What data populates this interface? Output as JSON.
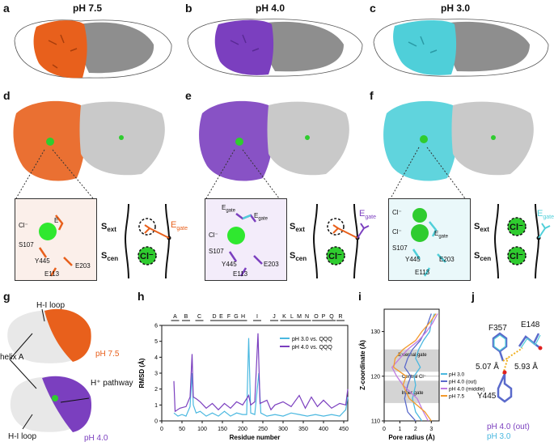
{
  "panels": {
    "a": "a",
    "b": "b",
    "c": "c",
    "d": "d",
    "e": "e",
    "f": "f",
    "g": "g",
    "h": "h",
    "i": "i",
    "j": "j"
  },
  "titles": {
    "a": "pH 7.5",
    "b": "pH 4.0",
    "c": "pH 3.0"
  },
  "colors": {
    "ph75": "#e8601c",
    "ph40": "#7b3fbf",
    "ph30": "#4fcfd9",
    "gray": "#9a9a9a",
    "green": "#2fcc2f"
  },
  "zoom_d": {
    "cl": "Cl⁻",
    "e": "E",
    "s107": "S107",
    "y445": "Y445",
    "e203": "E203",
    "e113": "E113"
  },
  "zoom_e": {
    "egate1": "E",
    "egate1_sub": "gate",
    "egate2": "E",
    "egate2_sub": "gate",
    "cl": "Cl⁻",
    "s107": "S107",
    "y445": "Y445",
    "e203": "E203",
    "e113": "E113"
  },
  "zoom_f": {
    "cl1": "Cl⁻",
    "cl2": "Cl⁻",
    "egate": "E",
    "egate_sub": "gate",
    "s107": "S107",
    "y445": "Y445",
    "e203": "E203",
    "e113": "E113"
  },
  "schematics": {
    "s": "S",
    "ext": "ext",
    "cen": "cen",
    "cl": "Cl⁻",
    "egate": "E",
    "egate_sub": "gate"
  },
  "panel_g": {
    "hi_loop_top": "H-I loop",
    "helix_a": "helix A",
    "hplus": "H⁺ pathway",
    "hi_loop_bottom": "H-I loop",
    "ph75": "pH 7.5",
    "ph40": "pH 4.0"
  },
  "chart_h": {
    "type": "line",
    "xlabel": "Residue number",
    "ylabel": "RMSD (Å)",
    "xlim": [
      0,
      460
    ],
    "ylim": [
      0,
      6
    ],
    "xticks": [
      0,
      50,
      100,
      150,
      200,
      250,
      300,
      350,
      400,
      450
    ],
    "yticks": [
      0,
      1,
      2,
      3,
      4,
      5,
      6
    ],
    "helices": [
      {
        "label": "A",
        "x": 33
      },
      {
        "label": "B",
        "x": 60
      },
      {
        "label": "C",
        "x": 93
      },
      {
        "label": "D",
        "x": 130
      },
      {
        "label": "E",
        "x": 147
      },
      {
        "label": "F",
        "x": 166
      },
      {
        "label": "G",
        "x": 184
      },
      {
        "label": "H",
        "x": 201
      },
      {
        "label": "I",
        "x": 236
      },
      {
        "label": "J",
        "x": 278
      },
      {
        "label": "K",
        "x": 303
      },
      {
        "label": "L",
        "x": 322
      },
      {
        "label": "M",
        "x": 340
      },
      {
        "label": "N",
        "x": 359
      },
      {
        "label": "O",
        "x": 382
      },
      {
        "label": "P",
        "x": 400
      },
      {
        "label": "Q",
        "x": 420
      },
      {
        "label": "R",
        "x": 442
      }
    ],
    "series": [
      {
        "name": "pH 3.0 vs. QQQ",
        "color": "#4ab8e0",
        "points": [
          [
            30,
            0.5
          ],
          [
            40,
            0.3
          ],
          [
            50,
            0.4
          ],
          [
            60,
            0.3
          ],
          [
            70,
            0.9
          ],
          [
            75,
            3.0
          ],
          [
            78,
            1.0
          ],
          [
            85,
            0.5
          ],
          [
            95,
            0.6
          ],
          [
            110,
            0.3
          ],
          [
            125,
            0.5
          ],
          [
            140,
            0.3
          ],
          [
            155,
            0.6
          ],
          [
            170,
            0.3
          ],
          [
            185,
            0.5
          ],
          [
            200,
            0.4
          ],
          [
            210,
            0.4
          ],
          [
            215,
            5.2
          ],
          [
            220,
            0.5
          ],
          [
            230,
            0.4
          ],
          [
            240,
            3.0
          ],
          [
            245,
            0.5
          ],
          [
            260,
            0.3
          ],
          [
            280,
            0.4
          ],
          [
            300,
            0.3
          ],
          [
            320,
            0.5
          ],
          [
            340,
            0.4
          ],
          [
            360,
            0.3
          ],
          [
            380,
            0.4
          ],
          [
            400,
            0.3
          ],
          [
            420,
            0.4
          ],
          [
            440,
            0.3
          ],
          [
            455,
            0.7
          ],
          [
            460,
            1.5
          ]
        ]
      },
      {
        "name": "pH 4.0 vs. QQQ",
        "color": "#7b3fbf",
        "points": [
          [
            30,
            2.5
          ],
          [
            33,
            0.6
          ],
          [
            45,
            0.8
          ],
          [
            60,
            0.9
          ],
          [
            70,
            1.5
          ],
          [
            75,
            4.2
          ],
          [
            78,
            1.5
          ],
          [
            85,
            1.4
          ],
          [
            95,
            1.2
          ],
          [
            110,
            0.8
          ],
          [
            125,
            1.1
          ],
          [
            140,
            0.7
          ],
          [
            155,
            1.1
          ],
          [
            170,
            0.8
          ],
          [
            185,
            1.2
          ],
          [
            200,
            1.0
          ],
          [
            210,
            1.4
          ],
          [
            215,
            1.6
          ],
          [
            220,
            1.0
          ],
          [
            230,
            1.2
          ],
          [
            238,
            5.5
          ],
          [
            243,
            1.1
          ],
          [
            260,
            1.3
          ],
          [
            270,
            0.7
          ],
          [
            280,
            1.0
          ],
          [
            300,
            1.2
          ],
          [
            320,
            0.9
          ],
          [
            340,
            1.6
          ],
          [
            355,
            0.8
          ],
          [
            370,
            1.5
          ],
          [
            385,
            0.9
          ],
          [
            400,
            1.3
          ],
          [
            420,
            0.8
          ],
          [
            440,
            1.1
          ],
          [
            455,
            1.0
          ],
          [
            460,
            2.0
          ]
        ]
      }
    ]
  },
  "chart_i": {
    "type": "line",
    "xlabel": "Pore radius (Å)",
    "ylabel": "Z-coordinate (Å)",
    "xlim": [
      0,
      3.5
    ],
    "ylim": [
      110,
      135
    ],
    "xticks": [
      0,
      1,
      2,
      3
    ],
    "yticks": [
      110,
      120,
      130
    ],
    "annotations": [
      "External gate",
      "Central Cl⁻",
      "Inner gate"
    ],
    "series": [
      {
        "name": "pH 3.0",
        "color": "#4ab8e0",
        "points": [
          [
            2.4,
            110
          ],
          [
            2.0,
            112
          ],
          [
            1.8,
            115
          ],
          [
            2.0,
            118
          ],
          [
            1.9,
            120
          ],
          [
            2.3,
            122
          ],
          [
            2.0,
            124
          ],
          [
            2.2,
            126
          ],
          [
            2.5,
            128
          ],
          [
            2.9,
            130
          ],
          [
            3.0,
            132
          ],
          [
            3.2,
            134
          ]
        ]
      },
      {
        "name": "pH 4.0 (out)",
        "color": "#5a6acb",
        "points": [
          [
            2.0,
            110
          ],
          [
            1.5,
            112
          ],
          [
            1.3,
            115
          ],
          [
            1.5,
            118
          ],
          [
            1.7,
            120
          ],
          [
            1.3,
            122
          ],
          [
            1.5,
            124
          ],
          [
            1.8,
            126
          ],
          [
            2.3,
            128
          ],
          [
            2.6,
            130
          ],
          [
            2.8,
            132
          ],
          [
            3.0,
            134
          ]
        ]
      },
      {
        "name": "pH 4.0 (middle)",
        "color": "#c07be0",
        "points": [
          [
            2.8,
            110
          ],
          [
            2.5,
            112
          ],
          [
            2.1,
            115
          ],
          [
            1.2,
            118
          ],
          [
            0.8,
            120
          ],
          [
            0.5,
            122
          ],
          [
            1.0,
            124
          ],
          [
            1.5,
            126
          ],
          [
            2.2,
            128
          ],
          [
            2.7,
            130
          ],
          [
            3.1,
            132
          ],
          [
            3.4,
            134
          ]
        ]
      },
      {
        "name": "pH 7.5",
        "color": "#f39a2c",
        "points": [
          [
            3.0,
            110
          ],
          [
            2.6,
            112
          ],
          [
            1.6,
            115
          ],
          [
            1.2,
            118
          ],
          [
            1.4,
            120
          ],
          [
            0.6,
            122
          ],
          [
            0.7,
            124
          ],
          [
            1.2,
            126
          ],
          [
            2.0,
            128
          ],
          [
            2.4,
            130
          ],
          [
            2.9,
            132
          ],
          [
            3.3,
            134
          ]
        ]
      }
    ]
  },
  "panel_j": {
    "f357": "F357",
    "e148": "E148",
    "d1": "5.07 Å",
    "d2": "5.93 Å",
    "y445": "Y445",
    "leg1": "pH 4.0 (out)",
    "leg2": "pH 3.0"
  }
}
